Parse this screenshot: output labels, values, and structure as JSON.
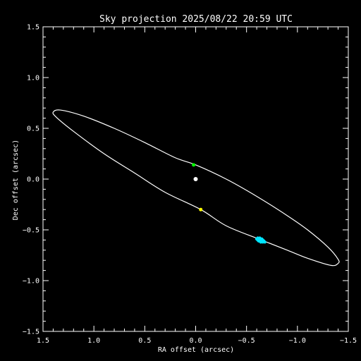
{
  "chart_data": {
    "type": "scatter",
    "title": "Sky projection 2025/08/22 20:59 UTC",
    "xlabel": "RA offset (arcsec)",
    "ylabel": "Dec offset (arcsec)",
    "xlim": [
      1.5,
      -1.5
    ],
    "ylim": [
      -1.5,
      1.5
    ],
    "x_ticks": [
      "1.5",
      "1.0",
      "0.5",
      "0.0",
      "−0.5",
      "−1.0",
      "−1.5"
    ],
    "y_ticks": [
      "−1.5",
      "−1.0",
      "−0.5",
      "0.0",
      "0.5",
      "1.0",
      "1.5"
    ],
    "orbit_ellipse": {
      "color": "#ffffff",
      "path": [
        [
          1.4,
          0.66
        ],
        [
          1.33,
          0.68
        ],
        [
          1.1,
          0.62
        ],
        [
          0.8,
          0.5
        ],
        [
          0.5,
          0.36
        ],
        [
          0.2,
          0.21
        ],
        [
          0.0,
          0.14
        ],
        [
          -0.3,
          0.0
        ],
        [
          -0.6,
          -0.17
        ],
        [
          -0.9,
          -0.36
        ],
        [
          -1.1,
          -0.5
        ],
        [
          -1.3,
          -0.67
        ],
        [
          -1.4,
          -0.79
        ],
        [
          -1.4,
          -0.83
        ],
        [
          -1.33,
          -0.85
        ],
        [
          -1.1,
          -0.78
        ],
        [
          -0.9,
          -0.7
        ],
        [
          -0.62,
          -0.59
        ],
        [
          -0.3,
          -0.46
        ],
        [
          -0.05,
          -0.3
        ],
        [
          0.3,
          -0.13
        ],
        [
          0.6,
          0.06
        ],
        [
          0.9,
          0.25
        ],
        [
          1.2,
          0.47
        ],
        [
          1.37,
          0.61
        ]
      ]
    },
    "points": [
      {
        "x": 0.0,
        "y": 0.0,
        "color": "#ffffff",
        "r": 3
      },
      {
        "x": 0.02,
        "y": 0.14,
        "color": "#00ff00",
        "r": 2.5
      },
      {
        "x": -0.05,
        "y": -0.3,
        "color": "#ffff00",
        "r": 2.5
      }
    ],
    "cluster": {
      "color": "#00e5ff",
      "points": [
        [
          -0.6,
          -0.59
        ],
        [
          -0.61,
          -0.6
        ],
        [
          -0.62,
          -0.59
        ],
        [
          -0.63,
          -0.61
        ],
        [
          -0.64,
          -0.6
        ],
        [
          -0.65,
          -0.61
        ],
        [
          -0.66,
          -0.62
        ],
        [
          -0.67,
          -0.61
        ],
        [
          -0.62,
          -0.61
        ],
        [
          -0.64,
          -0.62
        ],
        [
          -0.66,
          -0.6
        ],
        [
          -0.68,
          -0.62
        ],
        [
          -0.63,
          -0.58
        ],
        [
          -0.65,
          -0.59
        ],
        [
          -0.61,
          -0.58
        ]
      ]
    }
  }
}
